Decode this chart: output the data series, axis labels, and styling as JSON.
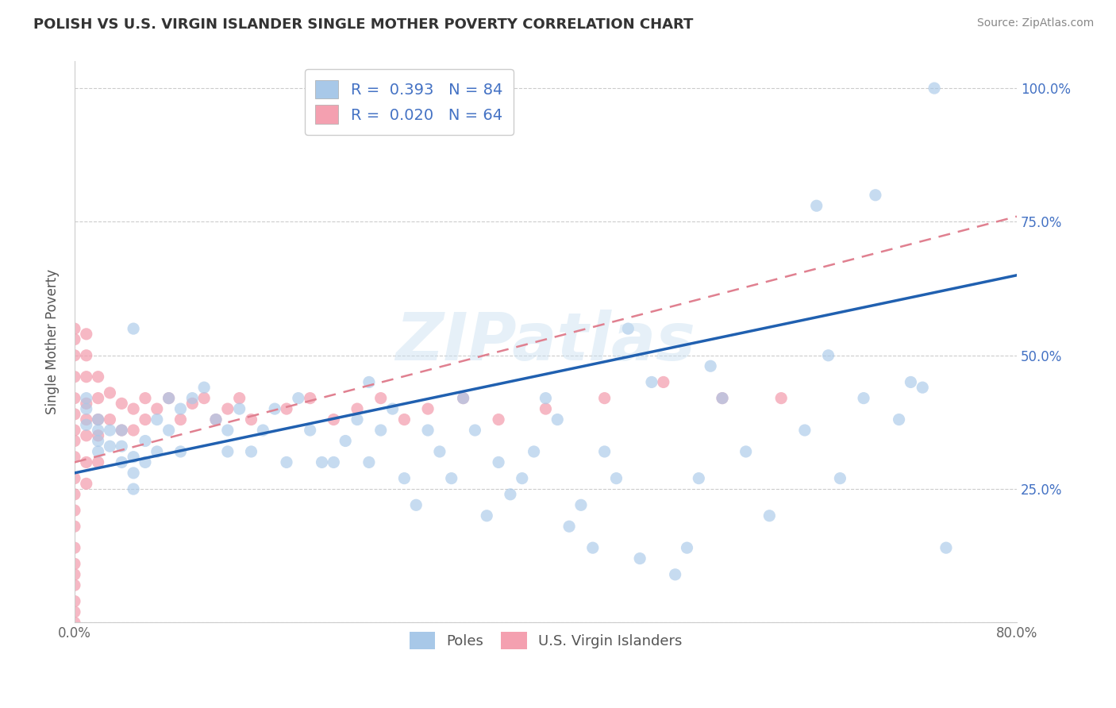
{
  "title": "POLISH VS U.S. VIRGIN ISLANDER SINGLE MOTHER POVERTY CORRELATION CHART",
  "source": "Source: ZipAtlas.com",
  "ylabel": "Single Mother Poverty",
  "xlim": [
    0.0,
    0.8
  ],
  "ylim": [
    0.0,
    1.05
  ],
  "y_ticks": [
    0.0,
    0.25,
    0.5,
    0.75,
    1.0
  ],
  "poles_R": 0.393,
  "poles_N": 84,
  "vi_R": 0.02,
  "vi_N": 64,
  "poles_color": "#a8c8e8",
  "vi_color": "#f4a0b0",
  "poles_line_color": "#2060b0",
  "vi_line_color": "#e08090",
  "background_color": "#ffffff",
  "grid_color": "#cccccc",
  "watermark_text": "ZIPatlas",
  "legend_label_poles": "Poles",
  "legend_label_vi": "U.S. Virgin Islanders",
  "poles_line_x0": 0.0,
  "poles_line_y0": 0.28,
  "poles_line_x1": 0.8,
  "poles_line_y1": 0.65,
  "vi_line_x0": 0.0,
  "vi_line_y0": 0.3,
  "vi_line_x1": 0.8,
  "vi_line_y1": 0.76,
  "poles_x": [
    0.01,
    0.01,
    0.01,
    0.02,
    0.02,
    0.02,
    0.02,
    0.03,
    0.03,
    0.04,
    0.04,
    0.04,
    0.05,
    0.05,
    0.05,
    0.05,
    0.06,
    0.06,
    0.07,
    0.07,
    0.08,
    0.08,
    0.09,
    0.09,
    0.1,
    0.11,
    0.12,
    0.13,
    0.13,
    0.14,
    0.15,
    0.16,
    0.17,
    0.18,
    0.19,
    0.2,
    0.21,
    0.22,
    0.23,
    0.24,
    0.25,
    0.25,
    0.26,
    0.27,
    0.28,
    0.29,
    0.3,
    0.31,
    0.32,
    0.33,
    0.34,
    0.35,
    0.36,
    0.37,
    0.38,
    0.39,
    0.4,
    0.41,
    0.42,
    0.43,
    0.44,
    0.45,
    0.46,
    0.47,
    0.48,
    0.49,
    0.51,
    0.52,
    0.53,
    0.54,
    0.55,
    0.57,
    0.59,
    0.62,
    0.65,
    0.68,
    0.71,
    0.73,
    0.63,
    0.64,
    0.67,
    0.7,
    0.72,
    0.74
  ],
  "poles_y": [
    0.37,
    0.4,
    0.42,
    0.32,
    0.34,
    0.36,
    0.38,
    0.33,
    0.36,
    0.3,
    0.33,
    0.36,
    0.25,
    0.28,
    0.31,
    0.55,
    0.3,
    0.34,
    0.32,
    0.38,
    0.36,
    0.42,
    0.32,
    0.4,
    0.42,
    0.44,
    0.38,
    0.32,
    0.36,
    0.4,
    0.32,
    0.36,
    0.4,
    0.3,
    0.42,
    0.36,
    0.3,
    0.3,
    0.34,
    0.38,
    0.3,
    0.45,
    0.36,
    0.4,
    0.27,
    0.22,
    0.36,
    0.32,
    0.27,
    0.42,
    0.36,
    0.2,
    0.3,
    0.24,
    0.27,
    0.32,
    0.42,
    0.38,
    0.18,
    0.22,
    0.14,
    0.32,
    0.27,
    0.55,
    0.12,
    0.45,
    0.09,
    0.14,
    0.27,
    0.48,
    0.42,
    0.32,
    0.2,
    0.36,
    0.27,
    0.8,
    0.45,
    1.0,
    0.78,
    0.5,
    0.42,
    0.38,
    0.44,
    0.14
  ],
  "vi_x": [
    0.0,
    0.0,
    0.0,
    0.0,
    0.0,
    0.0,
    0.0,
    0.0,
    0.0,
    0.0,
    0.0,
    0.0,
    0.0,
    0.0,
    0.0,
    0.0,
    0.0,
    0.0,
    0.0,
    0.0,
    0.01,
    0.01,
    0.01,
    0.01,
    0.01,
    0.01,
    0.01,
    0.01,
    0.02,
    0.02,
    0.02,
    0.02,
    0.02,
    0.03,
    0.03,
    0.04,
    0.04,
    0.05,
    0.05,
    0.06,
    0.06,
    0.07,
    0.08,
    0.09,
    0.1,
    0.11,
    0.12,
    0.13,
    0.14,
    0.15,
    0.18,
    0.2,
    0.22,
    0.24,
    0.26,
    0.28,
    0.3,
    0.33,
    0.36,
    0.4,
    0.45,
    0.5,
    0.55,
    0.6
  ],
  "vi_y": [
    0.53,
    0.5,
    0.46,
    0.42,
    0.39,
    0.36,
    0.34,
    0.31,
    0.27,
    0.24,
    0.21,
    0.18,
    0.14,
    0.11,
    0.09,
    0.07,
    0.04,
    0.02,
    0.0,
    0.55,
    0.54,
    0.5,
    0.46,
    0.41,
    0.38,
    0.35,
    0.3,
    0.26,
    0.46,
    0.42,
    0.38,
    0.35,
    0.3,
    0.43,
    0.38,
    0.41,
    0.36,
    0.4,
    0.36,
    0.42,
    0.38,
    0.4,
    0.42,
    0.38,
    0.41,
    0.42,
    0.38,
    0.4,
    0.42,
    0.38,
    0.4,
    0.42,
    0.38,
    0.4,
    0.42,
    0.38,
    0.4,
    0.42,
    0.38,
    0.4,
    0.42,
    0.45,
    0.42,
    0.42
  ]
}
